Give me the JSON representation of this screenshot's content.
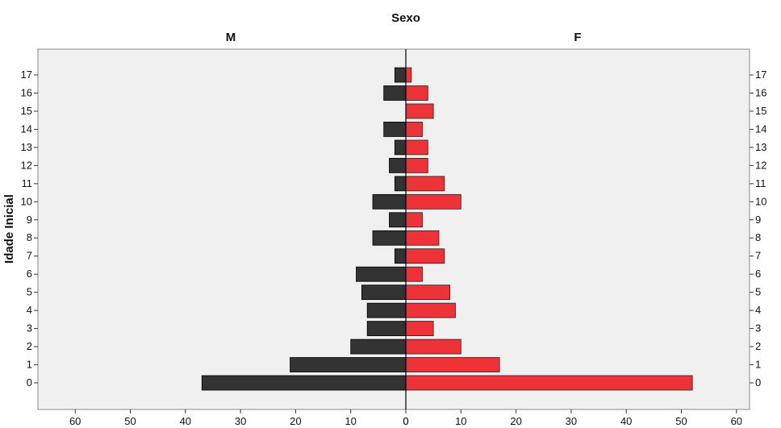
{
  "chart_data": {
    "type": "bar",
    "title": "",
    "facet_variable": "Sexo",
    "ylabel": "Idade Inicial",
    "xlabel": "",
    "categories": [
      "0",
      "1",
      "2",
      "3",
      "4",
      "5",
      "6",
      "7",
      "8",
      "9",
      "10",
      "11",
      "12",
      "13",
      "14",
      "15",
      "16",
      "17"
    ],
    "series": [
      {
        "name": "M",
        "color": "#333333",
        "values": [
          37,
          21,
          10,
          7,
          7,
          8,
          9,
          2,
          6,
          3,
          6,
          2,
          3,
          2,
          4,
          0,
          4,
          2
        ]
      },
      {
        "name": "F",
        "color": "#ee3338",
        "values": [
          52,
          17,
          10,
          5,
          9,
          8,
          3,
          7,
          6,
          3,
          10,
          7,
          4,
          4,
          3,
          5,
          4,
          1
        ]
      }
    ],
    "x_ticks_left": [
      "60",
      "50",
      "40",
      "30",
      "20",
      "10",
      "0"
    ],
    "x_ticks_right": [
      "0",
      "10",
      "20",
      "30",
      "40",
      "50",
      "60"
    ],
    "xlim": [
      0,
      60
    ],
    "grid": false,
    "plot_background": "#f0f0f0"
  }
}
